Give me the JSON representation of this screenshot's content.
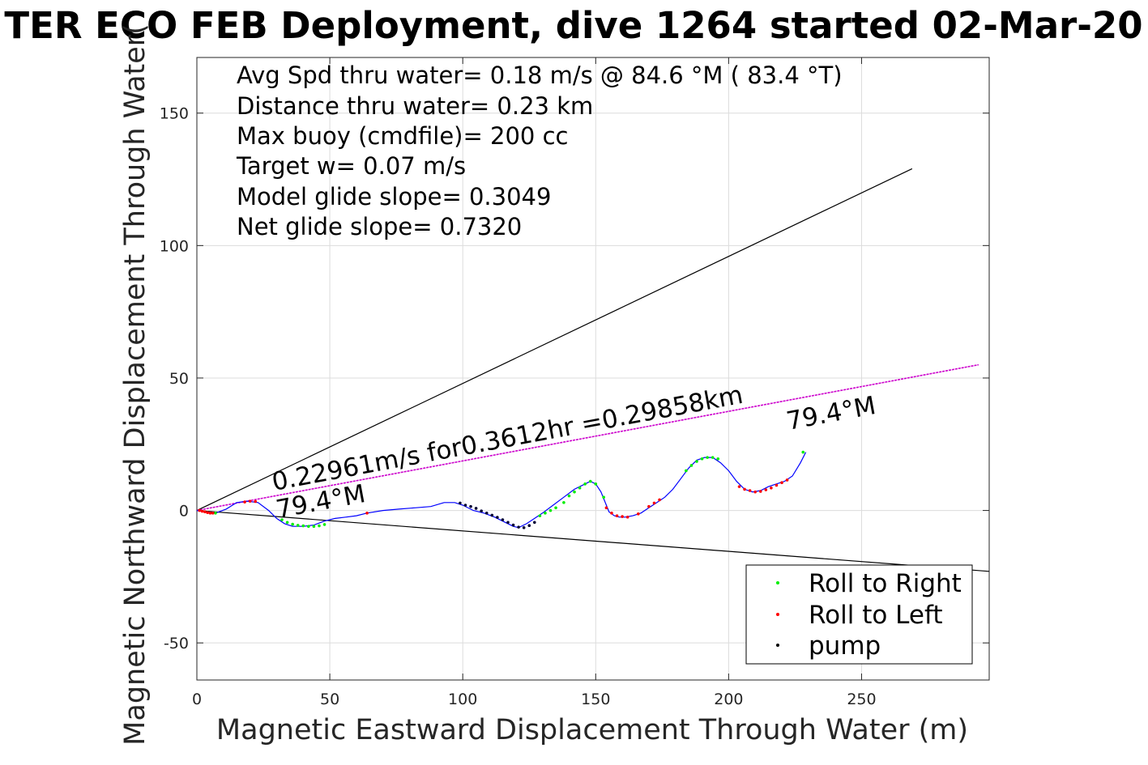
{
  "chart_data": {
    "type": "line",
    "title": "TER ECO FEB Deployment, dive 1264 started 02-Mar-20",
    "xlabel": "Magnetic Eastward Displacement Through Water (m)",
    "ylabel": "Magnetic Northward Displacement Through Water(",
    "xlim": [
      0,
      298
    ],
    "ylim": [
      -64,
      171
    ],
    "xticks": [
      0,
      50,
      100,
      150,
      200,
      250
    ],
    "yticks": [
      -50,
      0,
      50,
      100,
      150
    ],
    "grid": true,
    "stats_text": [
      "Avg Spd thru water=  0.18 m/s @  84.6 °M ( 83.4 °T)",
      "Distance thru water=  0.23 km",
      "Max buoy (cmdfile)= 200 cc",
      "Target w= 0.07 m/s",
      "Model glide slope= 0.3049",
      "Net glide slope= 0.7320"
    ],
    "annotations": {
      "heading_line_label": "0.22961m/s for0.3612hr =0.29858km",
      "heading_start_label": "79.4°M",
      "heading_end_label": "79.4°M"
    },
    "reference_lines": [
      {
        "name": "upper-envelope",
        "x": [
          0,
          269
        ],
        "y": [
          0,
          129
        ],
        "color": "#000000"
      },
      {
        "name": "lower-envelope",
        "x": [
          0,
          298
        ],
        "y": [
          0,
          -23
        ],
        "color": "#000000"
      },
      {
        "name": "heading",
        "x": [
          0,
          294
        ],
        "y": [
          0,
          55
        ],
        "color": "#cc00cc"
      }
    ],
    "series": [
      {
        "name": "track",
        "color": "#0000ff",
        "x": [
          0,
          3,
          7,
          11,
          15,
          19,
          23,
          27,
          30,
          33,
          36,
          40,
          44,
          48,
          52,
          56,
          60,
          64,
          70,
          76,
          82,
          88,
          93,
          97,
          100,
          104,
          108,
          112,
          116,
          119,
          121,
          124,
          127,
          130,
          134,
          138,
          142,
          146,
          148,
          150,
          152,
          154,
          155,
          157,
          159,
          161,
          164,
          167,
          170,
          173,
          176,
          179,
          182,
          185,
          188,
          191,
          194,
          197,
          200,
          203,
          206,
          209,
          212,
          215,
          218,
          221,
          224,
          227,
          229
        ],
        "y": [
          0,
          -0.5,
          -1,
          0.5,
          3,
          3.5,
          3,
          0,
          -3,
          -5,
          -6,
          -6,
          -5.5,
          -4,
          -3,
          -2.5,
          -2,
          -1,
          0,
          0.5,
          1,
          1.5,
          3,
          3,
          2,
          0,
          -1,
          -2.5,
          -4.5,
          -6,
          -6.5,
          -5,
          -3,
          -1,
          2,
          5,
          8,
          10,
          11,
          10,
          7,
          2,
          -0.5,
          -2,
          -2.5,
          -2.5,
          -2,
          -1,
          1,
          3,
          5,
          8,
          12,
          16,
          19,
          20,
          20,
          18,
          15,
          11,
          8,
          7,
          7.5,
          9,
          10,
          11,
          13,
          18,
          22
        ]
      }
    ],
    "markers": [
      {
        "name": "Roll to Right",
        "color": "#00ee00",
        "x": [
          7,
          32,
          34,
          36,
          38,
          40,
          42,
          44,
          46,
          48,
          129,
          131,
          133,
          135,
          138,
          140,
          142,
          144,
          146,
          148,
          150,
          153,
          184,
          186,
          188,
          190,
          192,
          194,
          196,
          228
        ],
        "y": [
          -1,
          -3.5,
          -4.5,
          -5.2,
          -5.6,
          -5.8,
          -6,
          -6,
          -5.8,
          -5.3,
          -2,
          -1,
          0,
          1,
          3,
          5.5,
          7,
          8.5,
          10,
          11,
          10,
          5,
          15,
          17,
          18.5,
          19.5,
          20,
          20,
          19.5,
          22
        ]
      },
      {
        "name": "Roll to Left",
        "color": "#ff0000",
        "x": [
          1,
          2,
          3,
          4,
          5,
          6,
          18,
          20,
          22,
          64,
          154,
          156,
          158,
          160,
          162,
          166,
          170,
          172,
          174,
          204,
          206,
          208,
          210,
          212,
          214,
          216,
          218,
          220,
          222
        ],
        "y": [
          0,
          -0.3,
          -0.5,
          -0.8,
          -1,
          -1,
          3.2,
          3.5,
          3.4,
          -1,
          1,
          -1,
          -2,
          -2.3,
          -2.5,
          -1.3,
          1.5,
          2.8,
          4,
          9,
          8,
          7.5,
          7,
          7.2,
          7.8,
          8.5,
          9.5,
          10.5,
          11.5
        ]
      },
      {
        "name": "pump",
        "color": "#000033",
        "x": [
          99,
          101,
          103,
          105,
          107,
          109,
          111,
          113,
          115,
          117,
          119,
          121,
          123,
          125,
          127
        ],
        "y": [
          2.8,
          2,
          1.5,
          0.8,
          -0.2,
          -1,
          -1.8,
          -2.6,
          -3.5,
          -4.5,
          -5.5,
          -6.3,
          -6.5,
          -5.7,
          -4.5
        ]
      }
    ],
    "legend": {
      "placement": "bottom-right",
      "entries": [
        {
          "label": "Roll to Right",
          "color": "#00ee00"
        },
        {
          "label": "Roll to Left",
          "color": "#ff0000"
        },
        {
          "label": "pump",
          "color": "#000000"
        }
      ]
    }
  }
}
